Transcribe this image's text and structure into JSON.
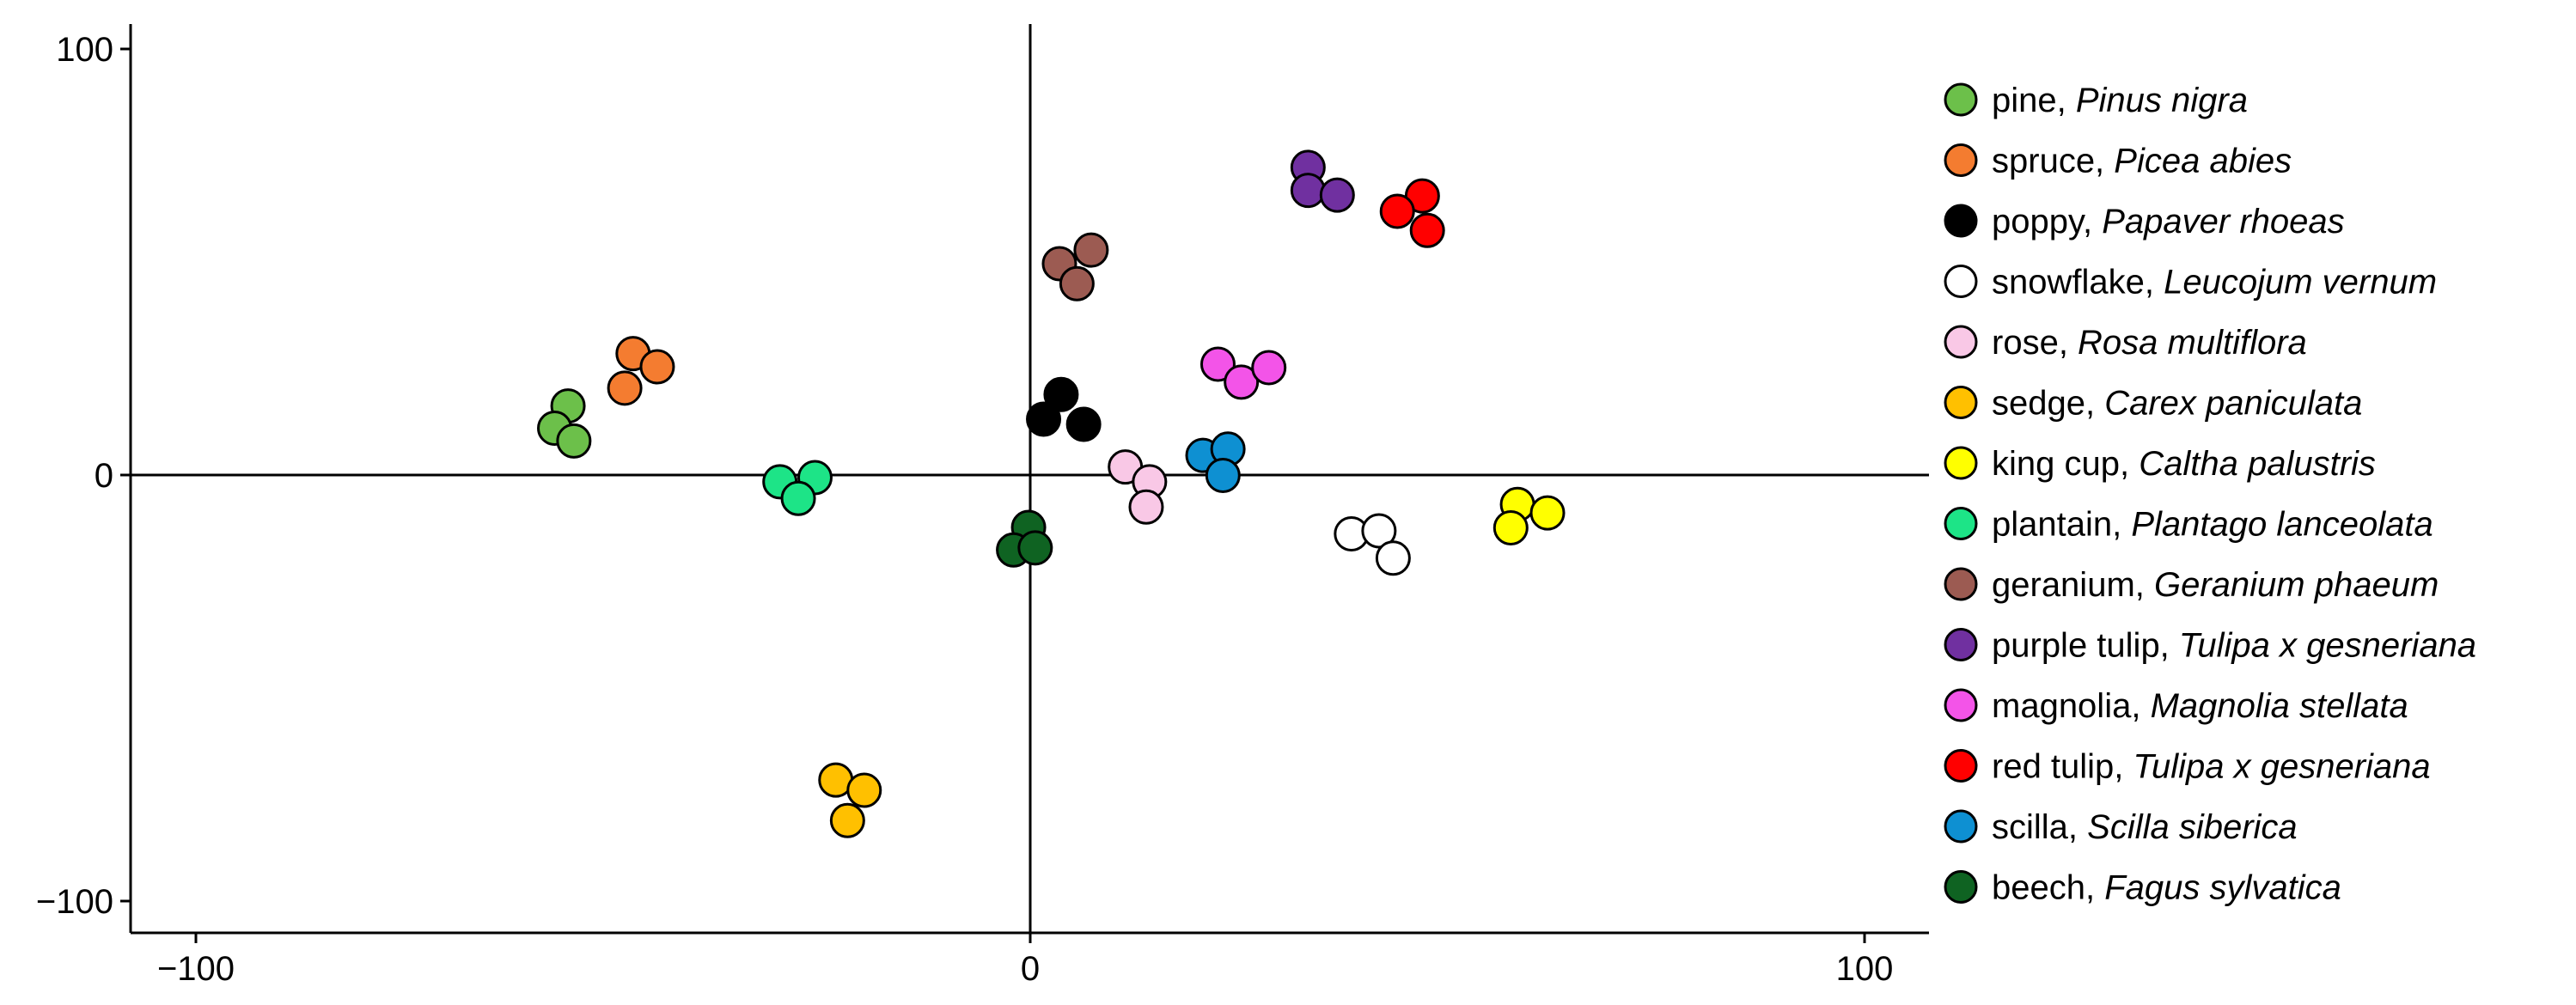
{
  "chart_data": {
    "type": "scatter",
    "title": "",
    "xlabel": "",
    "ylabel": "",
    "xlim": [
      -108,
      108
    ],
    "ylim": [
      -106,
      106
    ],
    "xticks": [
      {
        "value": -100,
        "label": "−100"
      },
      {
        "value": 0,
        "label": "0"
      },
      {
        "value": 100,
        "label": "100"
      }
    ],
    "yticks": [
      {
        "value": -100,
        "label": "−100"
      },
      {
        "value": 0,
        "label": "0"
      },
      {
        "value": 100,
        "label": "100"
      }
    ],
    "grid": false,
    "legend_position": "right",
    "series": [
      {
        "name": "pine",
        "latin": "Pinus nigra",
        "color": "#6cc04a",
        "points": [
          [
            -55.4,
            16.2
          ],
          [
            -57.0,
            11.0
          ],
          [
            -54.7,
            8.0
          ]
        ]
      },
      {
        "name": "spruce",
        "latin": "Picea abies",
        "color": "#f47c30",
        "points": [
          [
            -47.6,
            28.5
          ],
          [
            -44.7,
            25.4
          ],
          [
            -48.6,
            20.4
          ]
        ]
      },
      {
        "name": "poppy",
        "latin": "Papaver rhoeas",
        "color": "#000000",
        "points": [
          [
            3.7,
            18.9
          ],
          [
            1.6,
            13.1
          ],
          [
            6.4,
            11.9
          ]
        ]
      },
      {
        "name": "snowflake",
        "latin": "Leucojum vernum",
        "color": "#ffffff",
        "points": [
          [
            38.5,
            -13.8
          ],
          [
            41.8,
            -13.1
          ],
          [
            43.5,
            -19.5
          ]
        ]
      },
      {
        "name": "rose",
        "latin": "Rosa multiflora",
        "color": "#f9c8e6",
        "points": [
          [
            11.4,
            1.9
          ],
          [
            14.3,
            -1.6
          ],
          [
            13.9,
            -7.5
          ]
        ]
      },
      {
        "name": "sedge",
        "latin": "Carex paniculata",
        "color": "#ffc000",
        "points": [
          [
            -23.3,
            -71.6
          ],
          [
            -19.9,
            -74.0
          ],
          [
            -21.9,
            -81.1
          ]
        ]
      },
      {
        "name": "king cup",
        "latin": "Caltha palustris",
        "color": "#ffff00",
        "points": [
          [
            58.4,
            -6.9
          ],
          [
            62.0,
            -8.9
          ],
          [
            57.6,
            -12.4
          ]
        ]
      },
      {
        "name": "plantain",
        "latin": "Plantago lanceolata",
        "color": "#1de487",
        "points": [
          [
            -30.0,
            -1.6
          ],
          [
            -25.8,
            -0.6
          ],
          [
            -27.8,
            -5.5
          ]
        ]
      },
      {
        "name": "geranium",
        "latin": "Geranium phaeum",
        "color": "#9c5b52",
        "points": [
          [
            3.5,
            49.6
          ],
          [
            7.3,
            52.8
          ],
          [
            5.6,
            44.9
          ]
        ]
      },
      {
        "name": "purple tulip",
        "latin": "Tulipa x gesneriana",
        "color": "#7030a0",
        "points": [
          [
            33.3,
            72.2
          ],
          [
            33.3,
            66.8
          ],
          [
            36.8,
            65.7
          ]
        ]
      },
      {
        "name": "magnolia",
        "latin": "Magnolia stellata",
        "color": "#f354e8",
        "points": [
          [
            22.5,
            26.0
          ],
          [
            25.3,
            21.8
          ],
          [
            28.6,
            25.2
          ]
        ]
      },
      {
        "name": "red tulip",
        "latin": "Tulipa x gesneriana",
        "color": "#ff0000",
        "points": [
          [
            47.0,
            65.5
          ],
          [
            44.0,
            61.9
          ],
          [
            47.6,
            57.4
          ]
        ]
      },
      {
        "name": "scilla",
        "latin": "Scilla siberica",
        "color": "#0e90d2",
        "points": [
          [
            20.7,
            4.6
          ],
          [
            23.7,
            6.1
          ],
          [
            23.1,
            -0.1
          ]
        ]
      },
      {
        "name": "beech",
        "latin": "Fagus sylvatica",
        "color": "#0f6322",
        "points": [
          [
            -0.2,
            -12.3
          ],
          [
            -2.0,
            -17.6
          ],
          [
            0.6,
            -17.1
          ]
        ]
      }
    ]
  }
}
